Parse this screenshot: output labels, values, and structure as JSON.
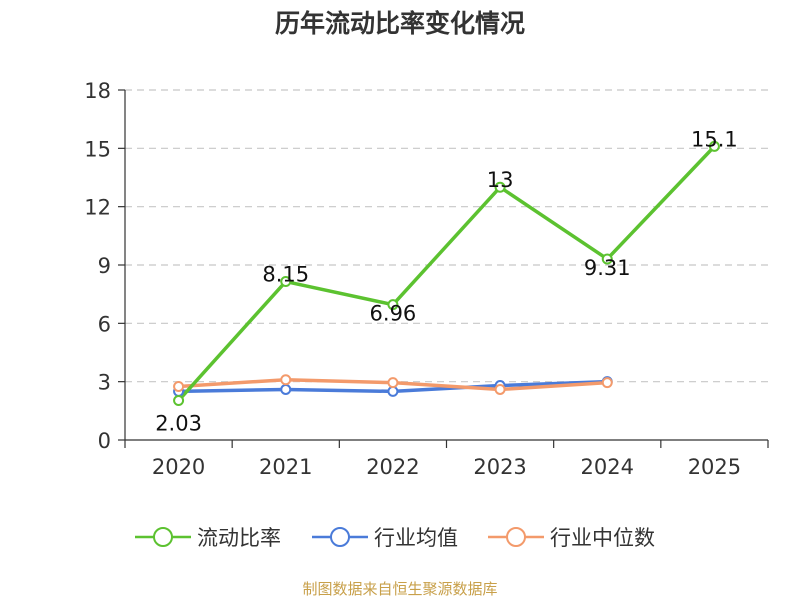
{
  "chart_data": {
    "type": "line",
    "title": "历年流动比率变化情况",
    "categories": [
      "2020",
      "2021",
      "2022",
      "2023",
      "2024",
      "2025"
    ],
    "ylim": [
      0,
      18
    ],
    "yticks": [
      0,
      3,
      6,
      9,
      12,
      15,
      18
    ],
    "grid": true,
    "legend_position": "bottom",
    "series": [
      {
        "name": "流动比率",
        "color": "#5cc230",
        "values": [
          2.03,
          8.15,
          6.96,
          13,
          9.31,
          15.1
        ],
        "labels": [
          "2.03",
          "8.15",
          "6.96",
          "13",
          "9.31",
          "15.1"
        ]
      },
      {
        "name": "行业均值",
        "color": "#4a7bd9",
        "values": [
          2.5,
          2.6,
          2.5,
          2.8,
          3.0,
          null
        ]
      },
      {
        "name": "行业中位数",
        "color": "#f39a6b",
        "values": [
          2.75,
          3.1,
          2.95,
          2.6,
          2.95,
          null
        ]
      }
    ]
  },
  "footer": {
    "source": "制图数据来自恒生聚源数据库"
  }
}
